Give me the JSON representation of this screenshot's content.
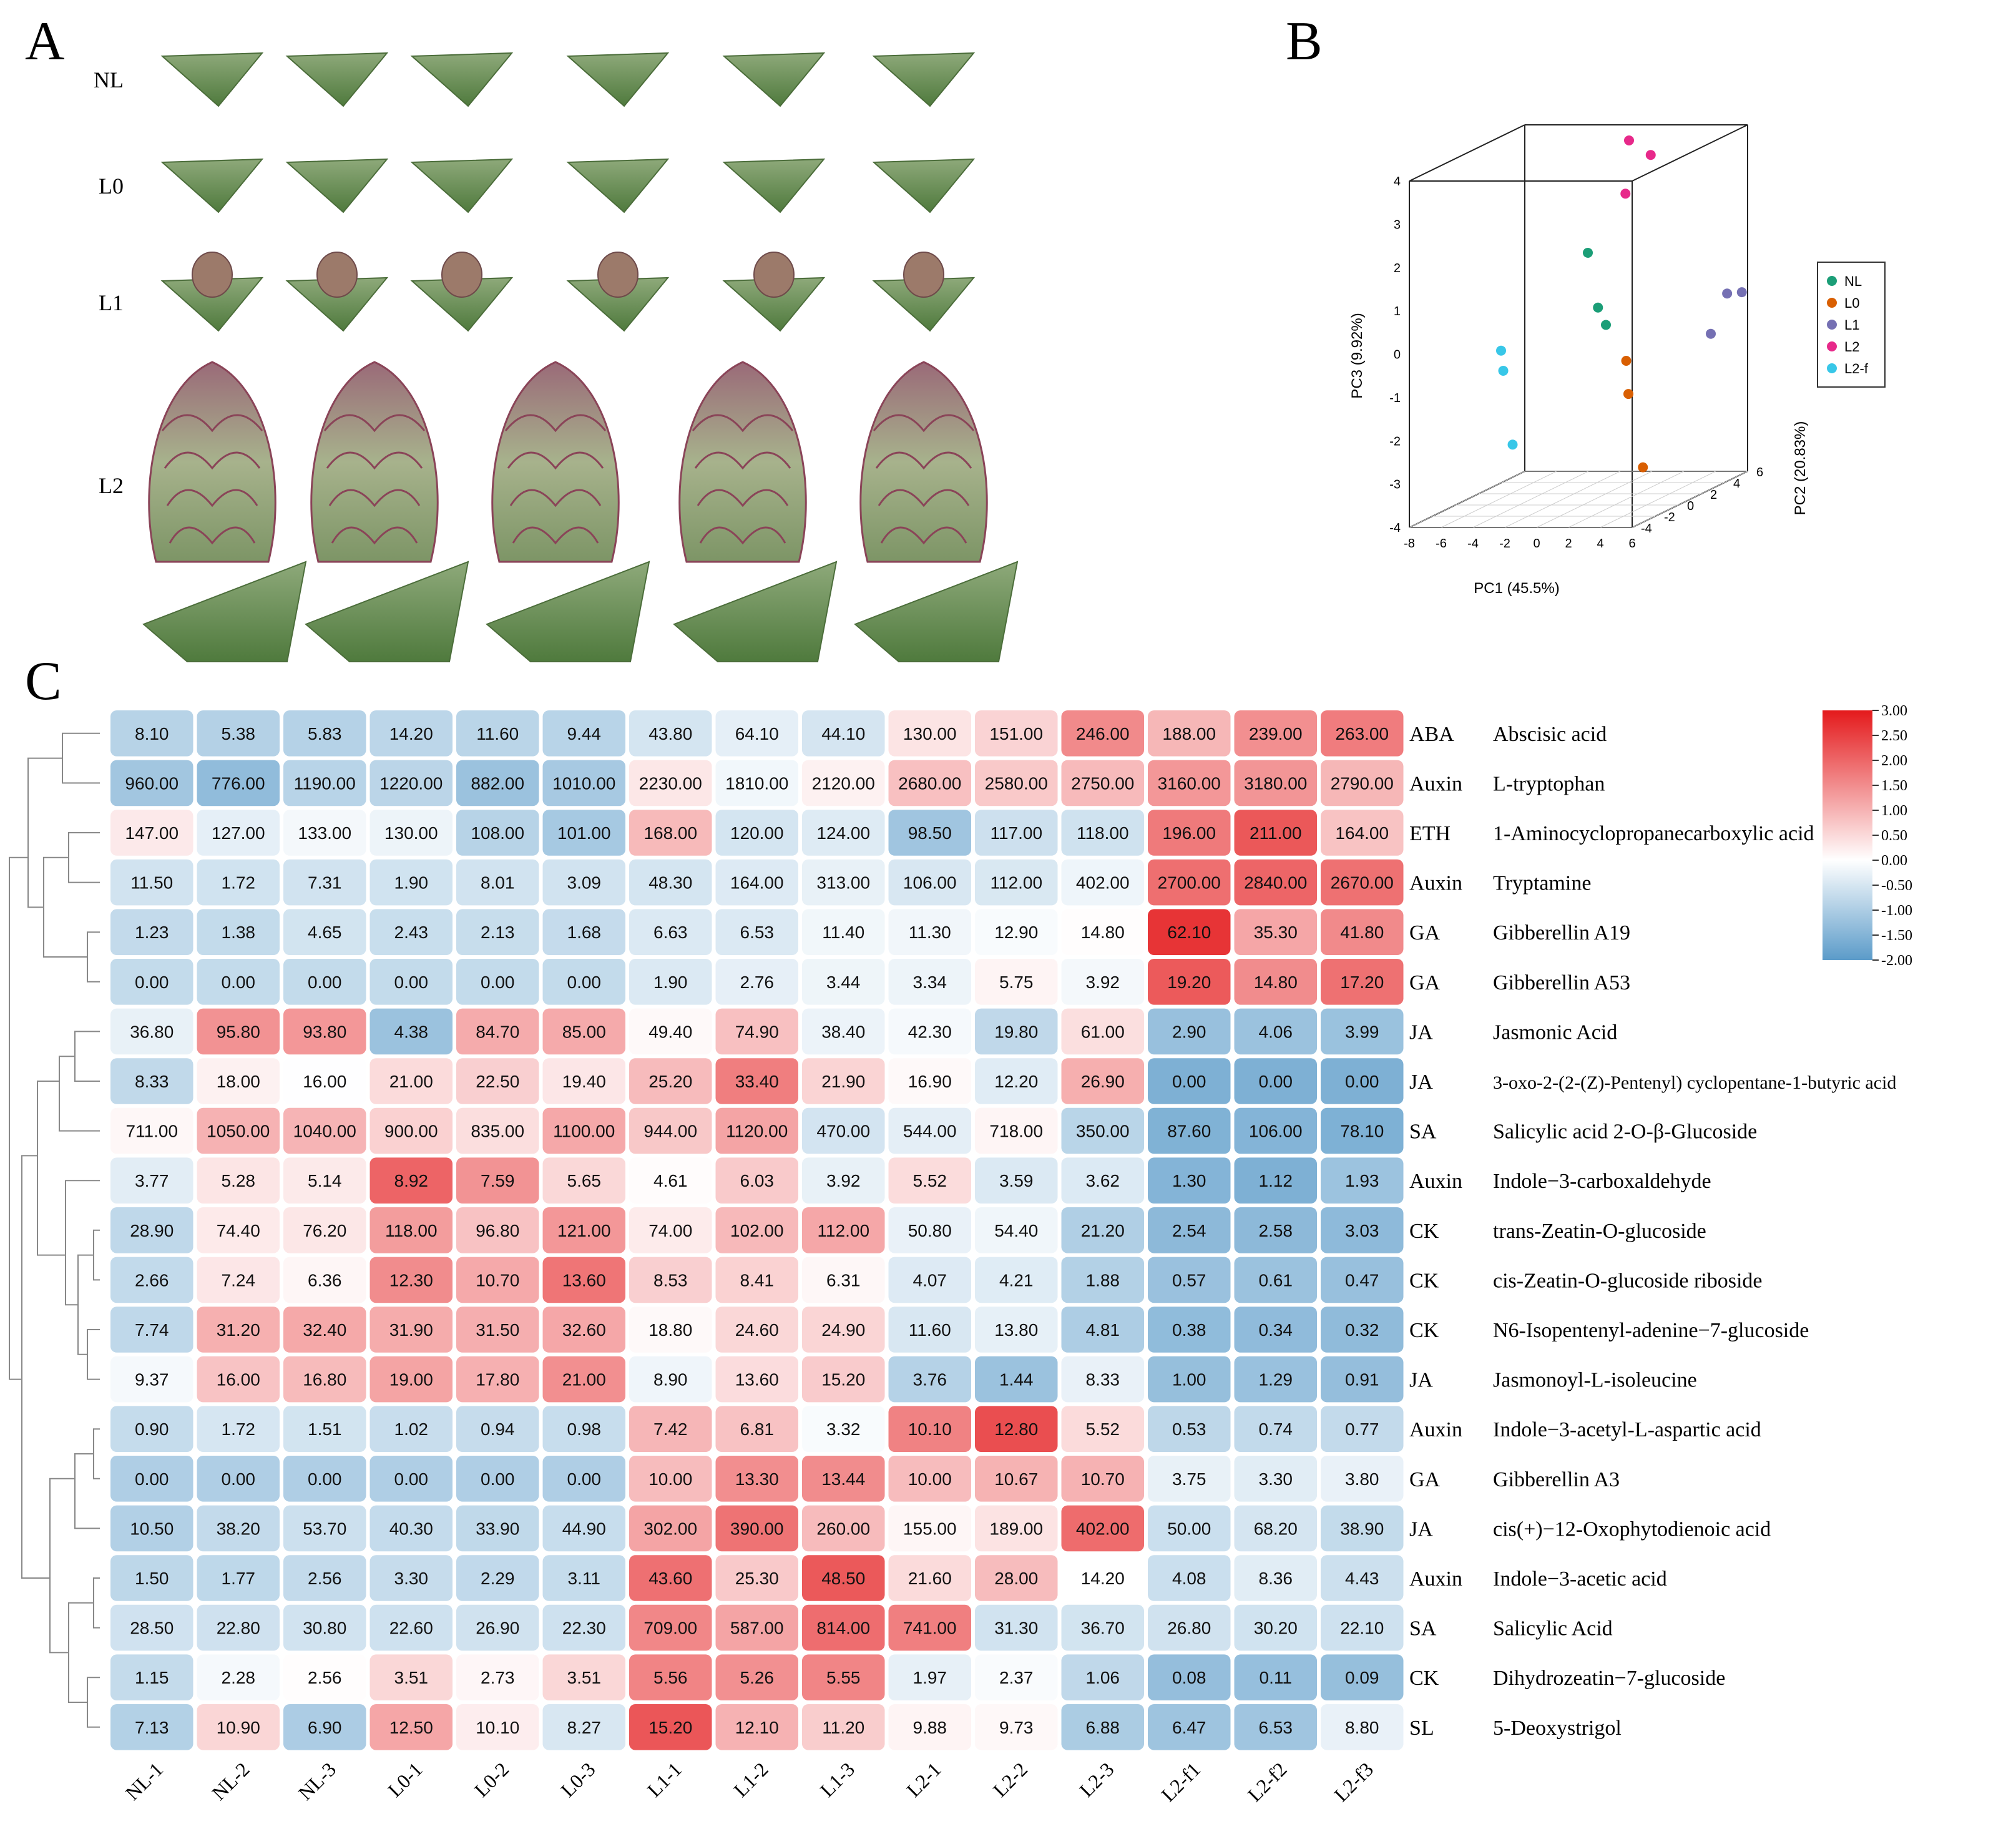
{
  "panels": {
    "a": {
      "letter": "A",
      "row_labels": [
        "NL",
        "L0",
        "L1",
        "L2"
      ],
      "image_note": "Photos of leaf bud stages (NL, L0, L1, L2)"
    },
    "b": {
      "letter": "B",
      "legend": [
        "NL",
        "L0",
        "L1",
        "L2",
        "L2-f"
      ]
    },
    "c": {
      "letter": "C"
    }
  },
  "chart_data": [
    {
      "type": "scatter3d",
      "title": "",
      "xlabel": "PC1 (45.5%)",
      "ylabel": "PC2 (20.83%)",
      "zlabel": "PC3 (9.92%)",
      "xlim": [
        -8,
        6
      ],
      "ylim": [
        -4,
        6
      ],
      "zlim": [
        -4,
        4
      ],
      "x_ticks": [
        "-8",
        "-6",
        "-4",
        "-2",
        "0",
        "2",
        "4",
        "6"
      ],
      "y_ticks": [
        "-4",
        "-2",
        "0",
        "2",
        "4",
        "6"
      ],
      "z_ticks": [
        "-4",
        "-3",
        "-2",
        "-1",
        "0",
        "1",
        "2",
        "3",
        "4"
      ],
      "series": [
        {
          "name": "NL",
          "color": "#1b9e77",
          "points": [
            [
              -1.5,
              2.5,
              1.5
            ],
            [
              -0.5,
              2.0,
              0.3
            ],
            [
              0.0,
              2.0,
              -0.1
            ]
          ]
        },
        {
          "name": "L0",
          "color": "#d95f02",
          "points": [
            [
              2.0,
              1.0,
              -0.8
            ],
            [
              2.5,
              0.5,
              -1.5
            ],
            [
              4.5,
              -1.0,
              -3.0
            ]
          ]
        },
        {
          "name": "L1",
          "color": "#7570b3",
          "points": [
            [
              5.5,
              3.5,
              -0.5
            ],
            [
              5.8,
              4.5,
              0.3
            ],
            [
              6.0,
              5.5,
              0.2
            ]
          ]
        },
        {
          "name": "L2",
          "color": "#e7298a",
          "points": [
            [
              0.0,
              4.0,
              3.9
            ],
            [
              1.0,
              4.5,
              3.5
            ],
            [
              0.5,
              3.0,
              2.8
            ]
          ]
        },
        {
          "name": "L2-f",
          "color": "#38c7e8",
          "points": [
            [
              -5.5,
              0.5,
              -0.5
            ],
            [
              -5.0,
              0.0,
              -0.9
            ],
            [
              -5.5,
              1.5,
              -2.8
            ]
          ]
        }
      ]
    },
    {
      "type": "heatmap",
      "title": "",
      "columns": [
        "NL-1",
        "NL-2",
        "NL-3",
        "L0-1",
        "L0-2",
        "L0-3",
        "L1-1",
        "L1-2",
        "L1-3",
        "L2-1",
        "L2-2",
        "L2-3",
        "L2-f1",
        "L2-f2",
        "L2-f3"
      ],
      "colorbar_ticks": [
        "3.00",
        "2.50",
        "2.00",
        "1.50",
        "1.00",
        "0.50",
        "0.00",
        "-0.50",
        "-1.00",
        "-1.50",
        "-2.00"
      ],
      "color_range": [
        -2,
        3
      ],
      "rows": [
        {
          "cls": "ABA",
          "name": "Abscisic acid",
          "values": [
            "8.10",
            "5.38",
            "5.83",
            "14.20",
            "11.60",
            "9.44",
            "43.80",
            "64.10",
            "44.10",
            "130.00",
            "151.00",
            "246.00",
            "188.00",
            "239.00",
            "263.00"
          ]
        },
        {
          "cls": "Auxin",
          "name": "L-tryptophan",
          "values": [
            "960.00",
            "776.00",
            "1190.00",
            "1220.00",
            "882.00",
            "1010.00",
            "2230.00",
            "1810.00",
            "2120.00",
            "2680.00",
            "2580.00",
            "2750.00",
            "3160.00",
            "3180.00",
            "2790.00"
          ]
        },
        {
          "cls": "ETH",
          "name": "1-Aminocyclopropanecarboxylic acid",
          "values": [
            "147.00",
            "127.00",
            "133.00",
            "130.00",
            "108.00",
            "101.00",
            "168.00",
            "120.00",
            "124.00",
            "98.50",
            "117.00",
            "118.00",
            "196.00",
            "211.00",
            "164.00"
          ]
        },
        {
          "cls": "Auxin",
          "name": "Tryptamine",
          "values": [
            "11.50",
            "1.72",
            "7.31",
            "1.90",
            "8.01",
            "3.09",
            "48.30",
            "164.00",
            "313.00",
            "106.00",
            "112.00",
            "402.00",
            "2700.00",
            "2840.00",
            "2670.00"
          ]
        },
        {
          "cls": "GA",
          "name": "Gibberellin A19",
          "values": [
            "1.23",
            "1.38",
            "4.65",
            "2.43",
            "2.13",
            "1.68",
            "6.63",
            "6.53",
            "11.40",
            "11.30",
            "12.90",
            "14.80",
            "62.10",
            "35.30",
            "41.80"
          ]
        },
        {
          "cls": "GA",
          "name": "Gibberellin A53",
          "values": [
            "0.00",
            "0.00",
            "0.00",
            "0.00",
            "0.00",
            "0.00",
            "1.90",
            "2.76",
            "3.44",
            "3.34",
            "5.75",
            "3.92",
            "19.20",
            "14.80",
            "17.20"
          ]
        },
        {
          "cls": "JA",
          "name": "Jasmonic Acid",
          "values": [
            "36.80",
            "95.80",
            "93.80",
            "4.38",
            "84.70",
            "85.00",
            "49.40",
            "74.90",
            "38.40",
            "42.30",
            "19.80",
            "61.00",
            "2.90",
            "4.06",
            "3.99"
          ]
        },
        {
          "cls": "JA",
          "name": "3-oxo-2-(2-(Z)-Pentenyl) cyclopentane-1-butyric acid",
          "values": [
            "8.33",
            "18.00",
            "16.00",
            "21.00",
            "22.50",
            "19.40",
            "25.20",
            "33.40",
            "21.90",
            "16.90",
            "12.20",
            "26.90",
            "0.00",
            "0.00",
            "0.00"
          ]
        },
        {
          "cls": "SA",
          "name": "Salicylic acid 2-O-β-Glucoside",
          "values": [
            "711.00",
            "1050.00",
            "1040.00",
            "900.00",
            "835.00",
            "1100.00",
            "944.00",
            "1120.00",
            "470.00",
            "544.00",
            "718.00",
            "350.00",
            "87.60",
            "106.00",
            "78.10"
          ]
        },
        {
          "cls": "Auxin",
          "name": "Indole−3-carboxaldehyde",
          "values": [
            "3.77",
            "5.28",
            "5.14",
            "8.92",
            "7.59",
            "5.65",
            "4.61",
            "6.03",
            "3.92",
            "5.52",
            "3.59",
            "3.62",
            "1.30",
            "1.12",
            "1.93"
          ]
        },
        {
          "cls": "CK",
          "name": "trans-Zeatin-O-glucoside",
          "values": [
            "28.90",
            "74.40",
            "76.20",
            "118.00",
            "96.80",
            "121.00",
            "74.00",
            "102.00",
            "112.00",
            "50.80",
            "54.40",
            "21.20",
            "2.54",
            "2.58",
            "3.03"
          ]
        },
        {
          "cls": "CK",
          "name": "cis-Zeatin-O-glucoside riboside",
          "values": [
            "2.66",
            "7.24",
            "6.36",
            "12.30",
            "10.70",
            "13.60",
            "8.53",
            "8.41",
            "6.31",
            "4.07",
            "4.21",
            "1.88",
            "0.57",
            "0.61",
            "0.47"
          ]
        },
        {
          "cls": "CK",
          "name": "N6-Isopentenyl-adenine−7-glucoside",
          "values": [
            "7.74",
            "31.20",
            "32.40",
            "31.90",
            "31.50",
            "32.60",
            "18.80",
            "24.60",
            "24.90",
            "11.60",
            "13.80",
            "4.81",
            "0.38",
            "0.34",
            "0.32"
          ]
        },
        {
          "cls": "JA",
          "name": "Jasmonoyl-L-isoleucine",
          "values": [
            "9.37",
            "16.00",
            "16.80",
            "19.00",
            "17.80",
            "21.00",
            "8.90",
            "13.60",
            "15.20",
            "3.76",
            "1.44",
            "8.33",
            "1.00",
            "1.29",
            "0.91"
          ]
        },
        {
          "cls": "Auxin",
          "name": "Indole−3-acetyl-L-aspartic acid",
          "values": [
            "0.90",
            "1.72",
            "1.51",
            "1.02",
            "0.94",
            "0.98",
            "7.42",
            "6.81",
            "3.32",
            "10.10",
            "12.80",
            "5.52",
            "0.53",
            "0.74",
            "0.77"
          ]
        },
        {
          "cls": "GA",
          "name": "Gibberellin A3",
          "values": [
            "0.00",
            "0.00",
            "0.00",
            "0.00",
            "0.00",
            "0.00",
            "10.00",
            "13.30",
            "13.44",
            "10.00",
            "10.67",
            "10.70",
            "3.75",
            "3.30",
            "3.80"
          ]
        },
        {
          "cls": "JA",
          "name": "cis(+)−12-Oxophytodienoic acid",
          "values": [
            "10.50",
            "38.20",
            "53.70",
            "40.30",
            "33.90",
            "44.90",
            "302.00",
            "390.00",
            "260.00",
            "155.00",
            "189.00",
            "402.00",
            "50.00",
            "68.20",
            "38.90"
          ]
        },
        {
          "cls": "Auxin",
          "name": "Indole−3-acetic acid",
          "values": [
            "1.50",
            "1.77",
            "2.56",
            "3.30",
            "2.29",
            "3.11",
            "43.60",
            "25.30",
            "48.50",
            "21.60",
            "28.00",
            "14.20",
            "4.08",
            "8.36",
            "4.43"
          ]
        },
        {
          "cls": "SA",
          "name": "Salicylic Acid",
          "values": [
            "28.50",
            "22.80",
            "30.80",
            "22.60",
            "26.90",
            "22.30",
            "709.00",
            "587.00",
            "814.00",
            "741.00",
            "31.30",
            "36.70",
            "26.80",
            "30.20",
            "22.10"
          ]
        },
        {
          "cls": "CK",
          "name": "Dihydrozeatin−7-glucoside",
          "values": [
            "1.15",
            "2.28",
            "2.56",
            "3.51",
            "2.73",
            "3.51",
            "5.56",
            "5.26",
            "5.55",
            "1.97",
            "2.37",
            "1.06",
            "0.08",
            "0.11",
            "0.09"
          ]
        },
        {
          "cls": "SL",
          "name": "5-Deoxystrigol",
          "values": [
            "7.13",
            "10.90",
            "6.90",
            "12.50",
            "10.10",
            "8.27",
            "15.20",
            "12.10",
            "11.20",
            "9.88",
            "9.73",
            "6.88",
            "6.47",
            "6.53",
            "8.80"
          ]
        }
      ]
    }
  ]
}
